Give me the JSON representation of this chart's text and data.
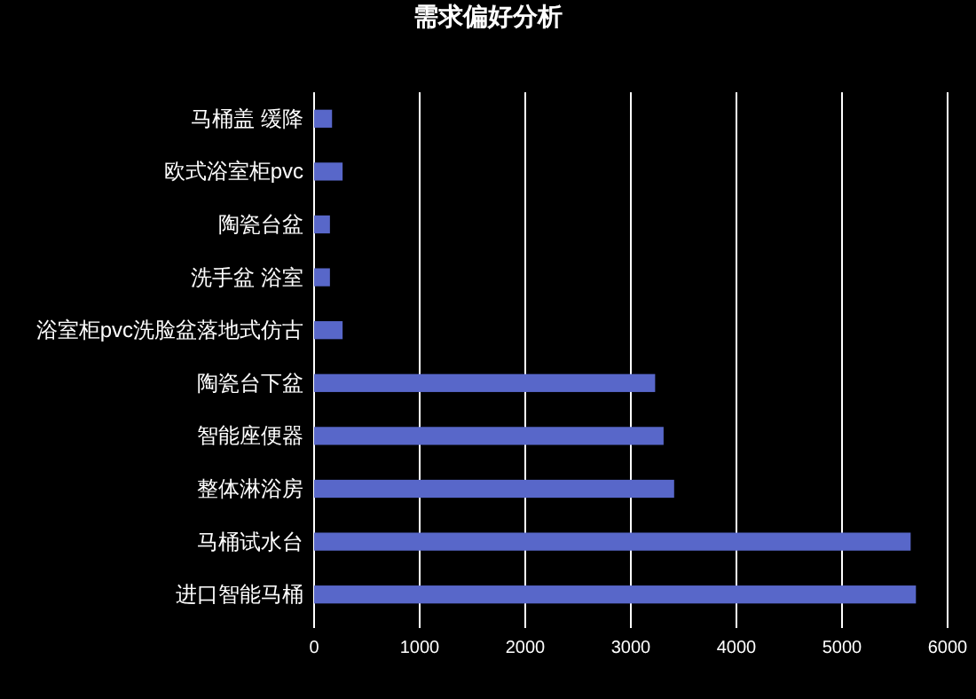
{
  "chart_data": {
    "type": "bar",
    "orientation": "horizontal",
    "title": "需求偏好分析",
    "categories": [
      "马桶盖 缓降",
      "欧式浴室柜pvc",
      "陶瓷台盆",
      "洗手盆 浴室",
      "浴室柜pvc洗脸盆落地式仿古",
      "陶瓷台下盆",
      "智能座便器",
      "整体淋浴房",
      "马桶试水台",
      "进口智能马桶"
    ],
    "values": [
      170,
      270,
      150,
      150,
      270,
      3230,
      3310,
      3410,
      5650,
      5700
    ],
    "color": "#5867c9",
    "xlim": [
      0,
      6000
    ],
    "xticks": [
      0,
      1000,
      2000,
      3000,
      4000,
      5000,
      6000
    ],
    "grid": "x"
  }
}
